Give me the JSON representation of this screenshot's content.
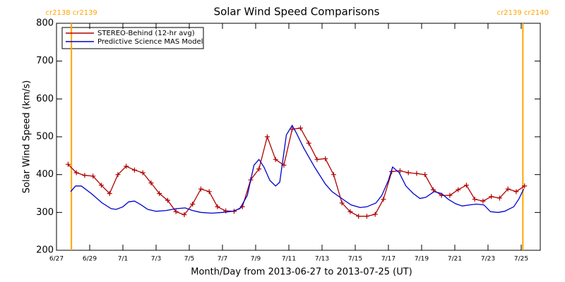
{
  "chart_data": {
    "type": "line",
    "title": "Solar Wind Speed Comparisons",
    "xlabel": "Month/Day from 2013-06-27 to 2013-07-25 (UT)",
    "ylabel": "Solar Wind Speed (km/s)",
    "xlim": [
      0,
      29.15
    ],
    "ylim": [
      200,
      800
    ],
    "xticks": [
      {
        "value": 0,
        "label": "6/27"
      },
      {
        "value": 2,
        "label": "6/29"
      },
      {
        "value": 4,
        "label": "7/1"
      },
      {
        "value": 6,
        "label": "7/3"
      },
      {
        "value": 8,
        "label": "7/5"
      },
      {
        "value": 10,
        "label": "7/7"
      },
      {
        "value": 12,
        "label": "7/9"
      },
      {
        "value": 14,
        "label": "7/11"
      },
      {
        "value": 16,
        "label": "7/13"
      },
      {
        "value": 18,
        "label": "7/15"
      },
      {
        "value": 20,
        "label": "7/17"
      },
      {
        "value": 22,
        "label": "7/19"
      },
      {
        "value": 24,
        "label": "7/21"
      },
      {
        "value": 26,
        "label": "7/23"
      },
      {
        "value": 28,
        "label": "7/25"
      }
    ],
    "yticks": [
      200,
      300,
      400,
      500,
      600,
      700,
      800
    ],
    "legend": "upper left",
    "annotations": [
      {
        "text": "cr2138 cr2139",
        "x": 0.9,
        "color": "#ffa500"
      },
      {
        "text": "cr2139 cr2140",
        "x": 28.1,
        "color": "#ffa500"
      }
    ],
    "series": [
      {
        "name": "STEREO-Behind (12-hr avg)",
        "color": "#b00000",
        "marker": "+",
        "x": [
          0.7,
          1.2,
          1.7,
          2.2,
          2.7,
          3.2,
          3.7,
          4.2,
          4.7,
          5.2,
          5.7,
          6.2,
          6.7,
          7.2,
          7.7,
          8.2,
          8.7,
          9.2,
          9.7,
          10.2,
          10.7,
          11.2,
          11.7,
          12.2,
          12.7,
          13.2,
          13.7,
          14.2,
          14.7,
          15.2,
          15.7,
          16.2,
          16.7,
          17.2,
          17.7,
          18.2,
          18.7,
          19.2,
          19.7,
          20.2,
          20.7,
          21.2,
          21.7,
          22.2,
          22.7,
          23.2,
          23.7,
          24.2,
          24.7,
          25.2,
          25.7,
          26.2,
          26.7,
          27.2,
          27.7,
          28.2
        ],
        "values": [
          427,
          405,
          398,
          396,
          372,
          350,
          400,
          422,
          412,
          405,
          378,
          350,
          332,
          302,
          294,
          322,
          362,
          355,
          315,
          304,
          303,
          315,
          386,
          415,
          500,
          440,
          425,
          520,
          523,
          483,
          440,
          442,
          400,
          325,
          302,
          290,
          290,
          295,
          335,
          408,
          410,
          405,
          403,
          400,
          360,
          345,
          345,
          360,
          372,
          335,
          330,
          342,
          338,
          362,
          355,
          370
        ]
      },
      {
        "name": "Predictive Science MAS Model",
        "color": "#0000cc",
        "x": [
          0.85,
          1.15,
          1.5,
          2.1,
          2.75,
          3.3,
          3.6,
          4.0,
          4.35,
          4.7,
          5.1,
          5.5,
          6.0,
          6.6,
          7.2,
          7.75,
          8.2,
          8.7,
          9.35,
          10.0,
          10.6,
          11.05,
          11.5,
          11.9,
          12.2,
          12.5,
          12.85,
          13.2,
          13.45,
          13.85,
          14.2,
          14.45,
          14.9,
          15.55,
          16.2,
          16.6,
          17.25,
          17.75,
          18.3,
          18.7,
          19.25,
          19.6,
          20.0,
          20.25,
          20.65,
          21.05,
          21.5,
          21.9,
          22.25,
          22.75,
          23.2,
          23.6,
          24.05,
          24.45,
          24.9,
          25.3,
          25.75,
          26.15,
          26.6,
          27.0,
          27.55,
          27.85,
          28.15
        ],
        "values": [
          355,
          370,
          370,
          350,
          325,
          310,
          308,
          315,
          328,
          330,
          320,
          308,
          303,
          305,
          310,
          312,
          305,
          300,
          298,
          300,
          303,
          310,
          345,
          425,
          440,
          420,
          385,
          370,
          380,
          505,
          530,
          510,
          470,
          420,
          375,
          355,
          335,
          320,
          313,
          315,
          325,
          345,
          385,
          420,
          405,
          370,
          350,
          337,
          340,
          355,
          350,
          335,
          323,
          317,
          320,
          322,
          320,
          302,
          300,
          303,
          315,
          335,
          362
        ]
      }
    ]
  }
}
